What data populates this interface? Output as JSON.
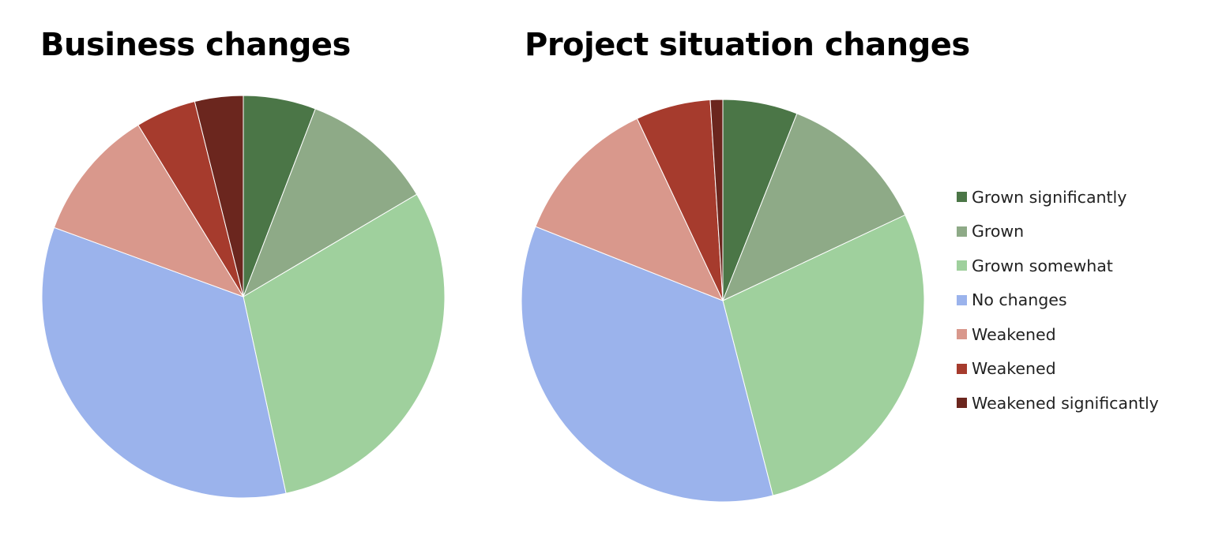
{
  "chart_data": [
    {
      "type": "pie",
      "title": "Business changes",
      "start_angle_deg": 0,
      "direction": "clockwise",
      "categories": [
        "Grown significantly",
        "Grown",
        "Grown somewhat",
        "No changes",
        "Weakened",
        "Weakened",
        "Weakened significantly"
      ],
      "values": [
        6,
        11,
        31,
        35,
        11,
        5,
        4
      ],
      "colors": [
        "#4b7647",
        "#8eaa87",
        "#9fd09d",
        "#9bb3ec",
        "#d9988c",
        "#a63b2d",
        "#6b261e"
      ]
    },
    {
      "type": "pie",
      "title": "Project situation changes",
      "start_angle_deg": 0,
      "direction": "clockwise",
      "categories": [
        "Grown significantly",
        "Grown",
        "Grown somewhat",
        "No changes",
        "Weakened",
        "Weakened",
        "Weakened significantly"
      ],
      "values": [
        6,
        12,
        28,
        35,
        12,
        6,
        1
      ],
      "colors": [
        "#4b7647",
        "#8eaa87",
        "#9fd09d",
        "#9bb3ec",
        "#d9988c",
        "#a63b2d",
        "#6b261e"
      ]
    }
  ],
  "legend": {
    "placement": "right",
    "items": [
      {
        "label": "Grown significantly",
        "color": "#4b7647"
      },
      {
        "label": "Grown",
        "color": "#8eaa87"
      },
      {
        "label": "Grown somewhat",
        "color": "#9fd09d"
      },
      {
        "label": "No changes",
        "color": "#9bb3ec"
      },
      {
        "label": "Weakened",
        "color": "#d9988c"
      },
      {
        "label": "Weakened",
        "color": "#a63b2d"
      },
      {
        "label": "Weakened significantly",
        "color": "#6b261e"
      }
    ]
  }
}
